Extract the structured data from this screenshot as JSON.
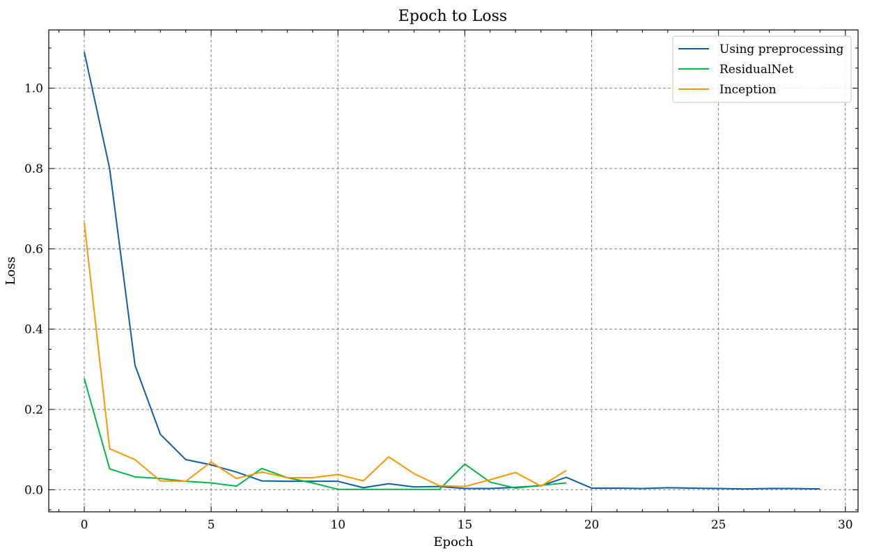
{
  "chart_data": {
    "type": "line",
    "title": "Epoch to Loss",
    "xlabel": "Epoch",
    "ylabel": "Loss",
    "xlim": [
      -1.4,
      30.5
    ],
    "ylim": [
      -0.055,
      1.145
    ],
    "xticks": [
      0,
      5,
      10,
      15,
      20,
      25,
      30
    ],
    "yticks": [
      0.0,
      0.2,
      0.4,
      0.6,
      0.8,
      1.0
    ],
    "xtick_labels": [
      "0",
      "5",
      "10",
      "15",
      "20",
      "25",
      "30"
    ],
    "ytick_labels": [
      "0.0",
      "0.2",
      "0.4",
      "0.6",
      "0.8",
      "1.0"
    ],
    "grid": true,
    "legend_position": "top-right",
    "series": [
      {
        "name": "Using preprocessing",
        "color": "#0c5da5",
        "x": [
          0,
          1,
          2,
          3,
          4,
          5,
          6,
          7,
          8,
          9,
          10,
          11,
          12,
          13,
          14,
          15,
          16,
          17,
          18,
          19,
          20,
          21,
          22,
          23,
          24,
          25,
          26,
          27,
          28,
          29
        ],
        "y": [
          1.09,
          0.8,
          0.31,
          0.138,
          0.075,
          0.062,
          0.044,
          0.022,
          0.021,
          0.021,
          0.021,
          0.005,
          0.015,
          0.007,
          0.008,
          0.003,
          0.003,
          0.006,
          0.01,
          0.031,
          0.004,
          0.004,
          0.003,
          0.005,
          0.004,
          0.003,
          0.002,
          0.003,
          0.003,
          0.002
        ]
      },
      {
        "name": "ResidualNet",
        "color": "#00b945",
        "x": [
          0,
          1,
          2,
          3,
          4,
          5,
          6,
          7,
          8,
          9,
          10,
          11,
          12,
          13,
          14,
          15,
          16,
          17,
          18,
          19
        ],
        "y": [
          0.277,
          0.052,
          0.032,
          0.028,
          0.021,
          0.017,
          0.009,
          0.053,
          0.03,
          0.017,
          0.001,
          0.001,
          0.001,
          0.001,
          0.001,
          0.064,
          0.019,
          0.004,
          0.011,
          0.017
        ]
      },
      {
        "name": "Inception",
        "color": "#ff9500",
        "x": [
          0,
          1,
          2,
          3,
          4,
          5,
          6,
          7,
          8,
          9,
          10,
          11,
          12,
          13,
          14,
          15,
          16,
          17,
          18,
          19
        ],
        "y": [
          0.665,
          0.102,
          0.075,
          0.022,
          0.021,
          0.069,
          0.028,
          0.044,
          0.03,
          0.03,
          0.038,
          0.022,
          0.082,
          0.04,
          0.01,
          0.008,
          0.025,
          0.043,
          0.009,
          0.048
        ]
      }
    ]
  }
}
